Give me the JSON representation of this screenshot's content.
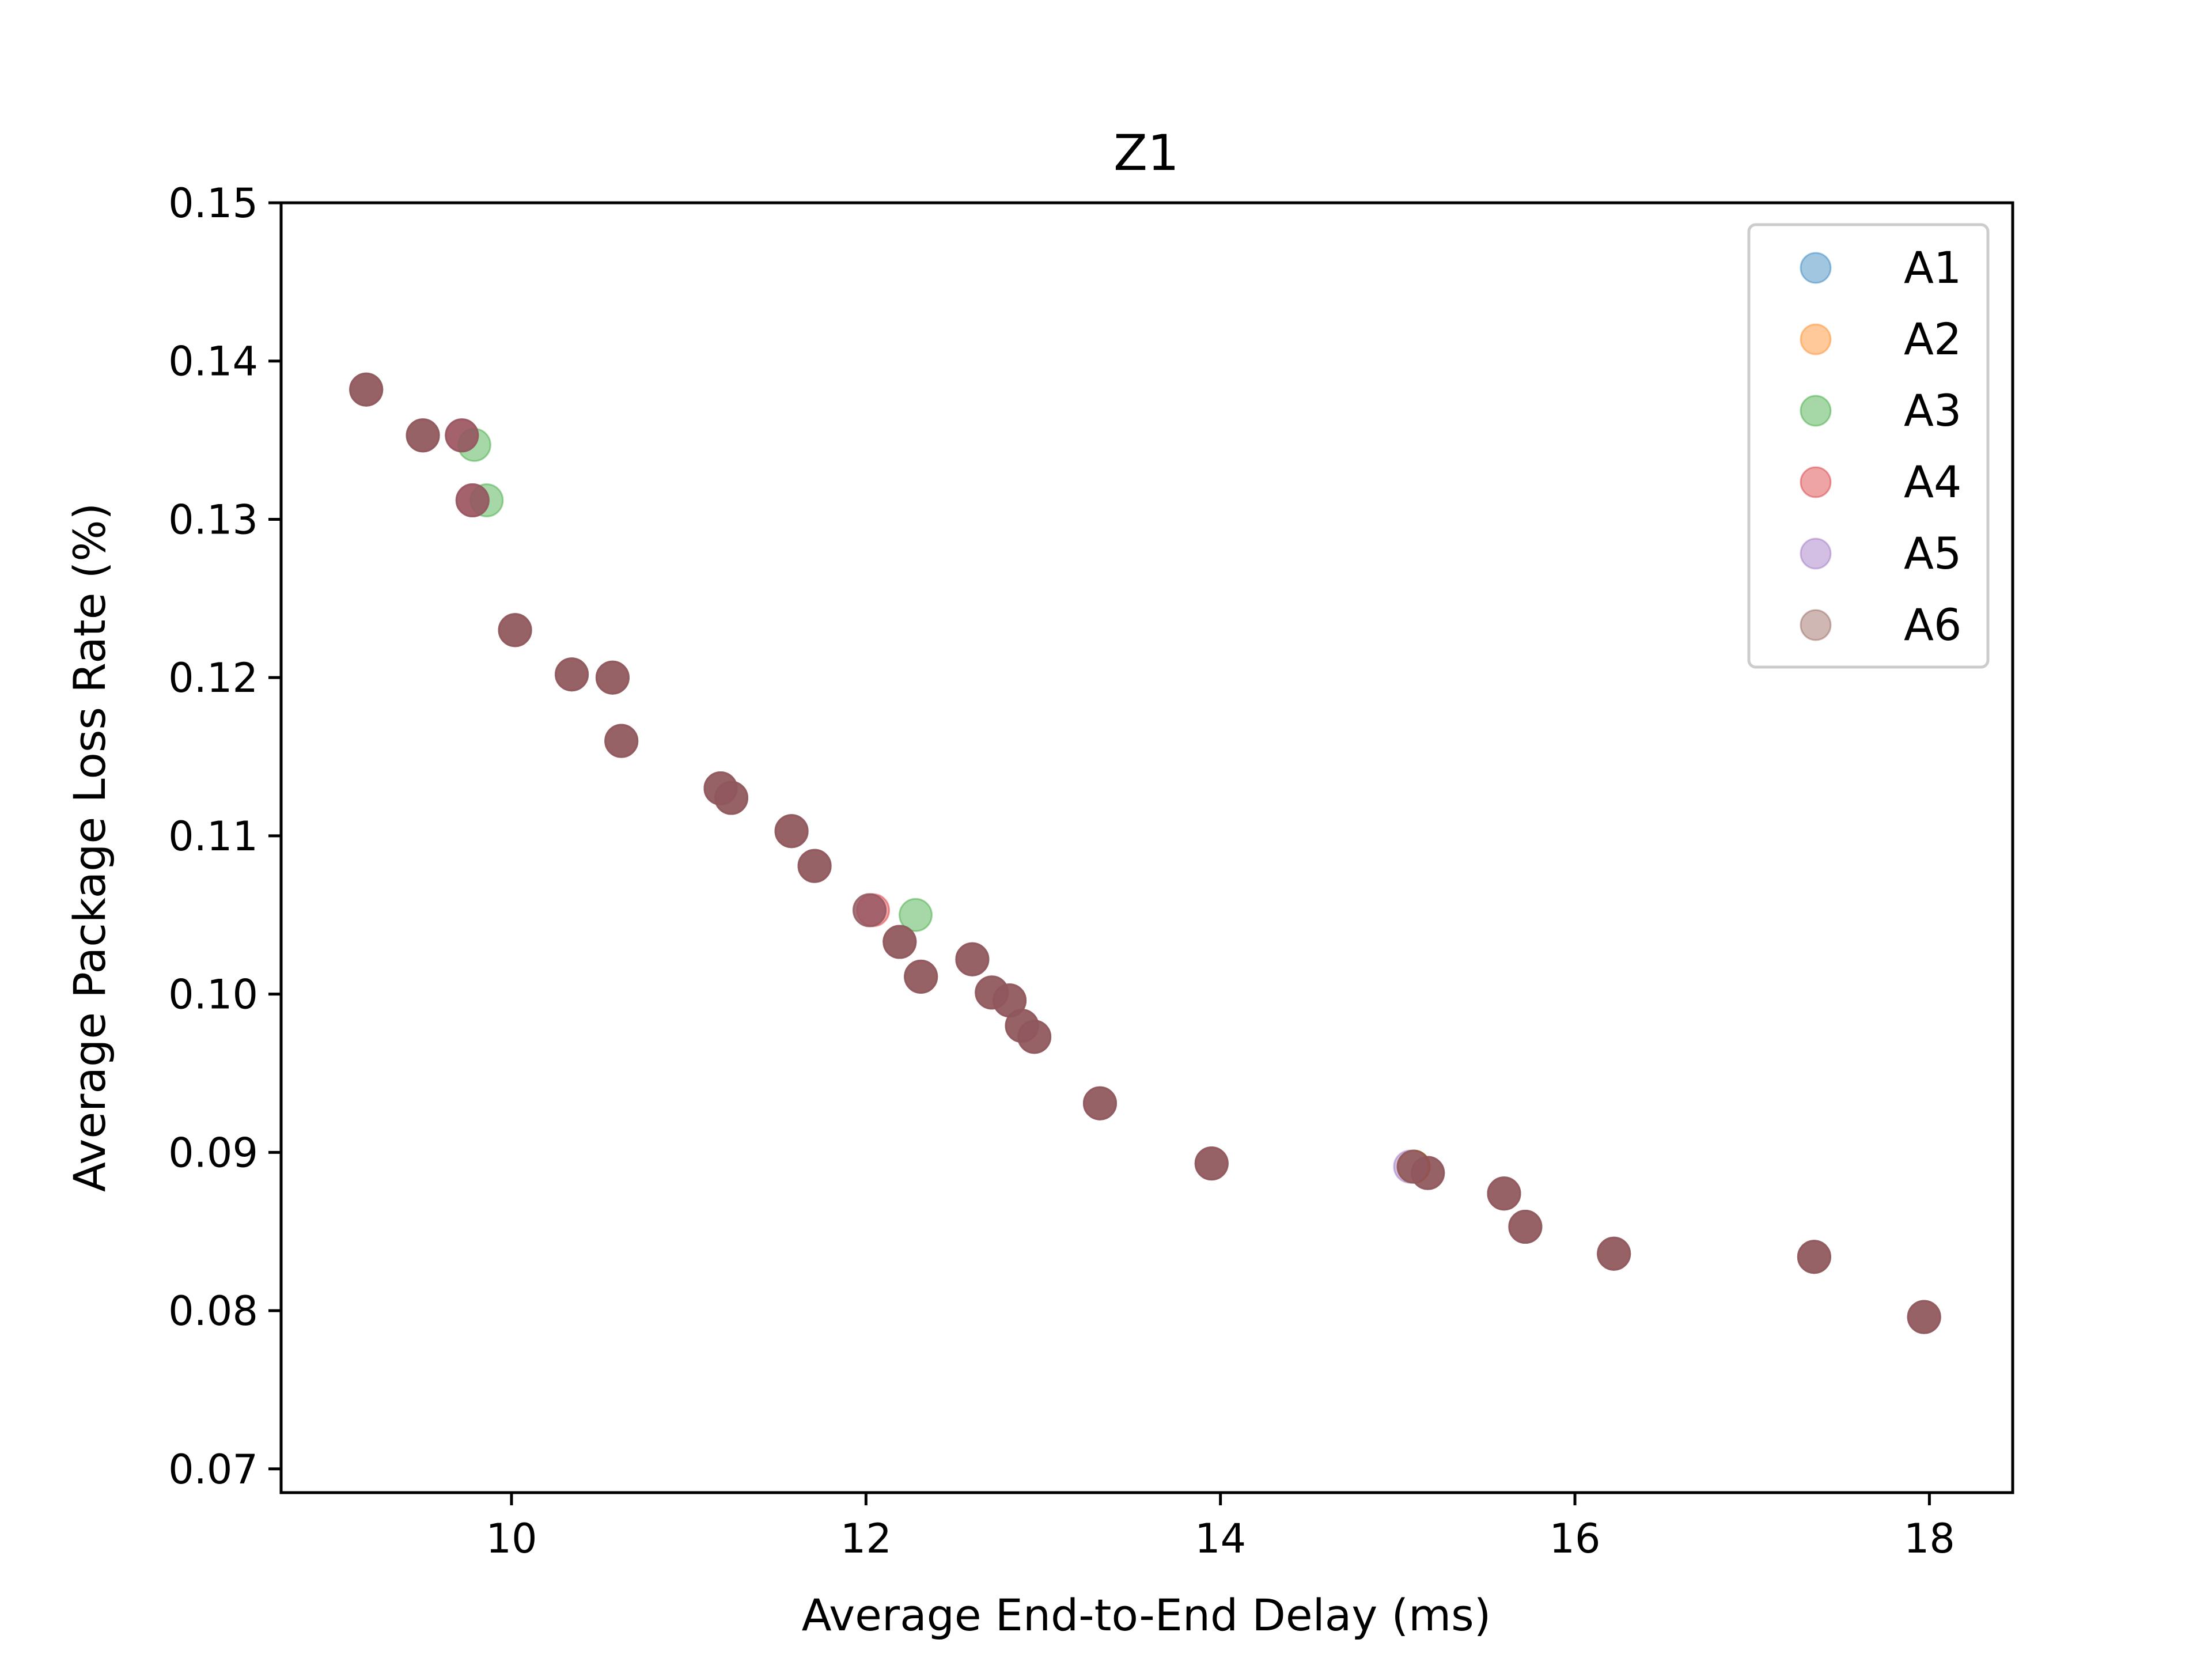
{
  "chart_data": {
    "type": "scatter",
    "title": "Z1",
    "xlabel": "Average End-to-End Delay (ms)",
    "ylabel": "Average Package Loss Rate (%)",
    "xlim": [
      8.7,
      18.47
    ],
    "ylim": [
      0.0685,
      0.15
    ],
    "xticks": [
      "10",
      "12",
      "14",
      "16",
      "18"
    ],
    "xtick_values": [
      10,
      12,
      14,
      16,
      18
    ],
    "yticks": [
      "0.07",
      "0.08",
      "0.09",
      "0.10",
      "0.11",
      "0.12",
      "0.13",
      "0.14",
      "0.15"
    ],
    "ytick_values": [
      0.07,
      0.08,
      0.09,
      0.1,
      0.11,
      0.12,
      0.13,
      0.14,
      0.15
    ],
    "grid": false,
    "legend_position": "top-right",
    "series": [
      {
        "name": "A1",
        "color": "#1f77b4",
        "points": [
          [
            9.18,
            0.1382
          ],
          [
            9.5,
            0.1353
          ],
          [
            9.72,
            0.1353
          ],
          [
            9.78,
            0.1312
          ],
          [
            10.02,
            0.123
          ],
          [
            10.34,
            0.1202
          ],
          [
            10.57,
            0.12
          ],
          [
            10.62,
            0.116
          ],
          [
            11.18,
            0.113
          ],
          [
            11.24,
            0.1124
          ],
          [
            11.58,
            0.1103
          ],
          [
            11.71,
            0.1081
          ],
          [
            12.02,
            0.1053
          ],
          [
            12.19,
            0.1033
          ],
          [
            12.31,
            0.1011
          ],
          [
            12.6,
            0.1022
          ],
          [
            12.71,
            0.1001
          ],
          [
            12.81,
            0.0996
          ],
          [
            12.88,
            0.098
          ],
          [
            12.95,
            0.0973
          ],
          [
            13.32,
            0.0931
          ],
          [
            13.95,
            0.0893
          ],
          [
            15.09,
            0.0891
          ],
          [
            15.17,
            0.0887
          ],
          [
            15.6,
            0.0874
          ],
          [
            15.72,
            0.0853
          ],
          [
            16.22,
            0.0836
          ],
          [
            17.35,
            0.0834
          ],
          [
            17.97,
            0.0796
          ]
        ]
      },
      {
        "name": "A2",
        "color": "#ff7f0e",
        "points": [
          [
            9.18,
            0.1382
          ],
          [
            9.5,
            0.1353
          ],
          [
            9.72,
            0.1353
          ],
          [
            9.78,
            0.1312
          ],
          [
            10.02,
            0.123
          ],
          [
            10.34,
            0.1202
          ],
          [
            10.57,
            0.12
          ],
          [
            10.62,
            0.116
          ],
          [
            11.18,
            0.113
          ],
          [
            11.24,
            0.1124
          ],
          [
            11.58,
            0.1103
          ],
          [
            11.71,
            0.1081
          ],
          [
            12.02,
            0.1053
          ],
          [
            12.19,
            0.1033
          ],
          [
            12.31,
            0.1011
          ],
          [
            12.6,
            0.1022
          ],
          [
            12.71,
            0.1001
          ],
          [
            12.81,
            0.0996
          ],
          [
            12.88,
            0.098
          ],
          [
            12.95,
            0.0973
          ],
          [
            13.32,
            0.0931
          ],
          [
            13.95,
            0.0893
          ],
          [
            15.09,
            0.0891
          ],
          [
            15.17,
            0.0887
          ],
          [
            15.6,
            0.0874
          ],
          [
            15.72,
            0.0853
          ],
          [
            16.22,
            0.0836
          ],
          [
            17.35,
            0.0834
          ],
          [
            17.97,
            0.0796
          ]
        ]
      },
      {
        "name": "A3",
        "color": "#2ca02c",
        "points": [
          [
            9.18,
            0.1382
          ],
          [
            9.5,
            0.1353
          ],
          [
            9.79,
            0.1347
          ],
          [
            9.86,
            0.1312
          ],
          [
            10.02,
            0.123
          ],
          [
            10.34,
            0.1202
          ],
          [
            10.57,
            0.12
          ],
          [
            10.62,
            0.116
          ],
          [
            11.18,
            0.113
          ],
          [
            11.24,
            0.1124
          ],
          [
            11.58,
            0.1103
          ],
          [
            11.71,
            0.1081
          ],
          [
            12.28,
            0.105
          ],
          [
            12.19,
            0.1033
          ],
          [
            12.31,
            0.1011
          ],
          [
            12.6,
            0.1022
          ],
          [
            12.71,
            0.1001
          ],
          [
            12.81,
            0.0996
          ],
          [
            12.88,
            0.098
          ],
          [
            12.95,
            0.0973
          ],
          [
            13.32,
            0.0931
          ],
          [
            13.95,
            0.0893
          ],
          [
            15.09,
            0.0891
          ],
          [
            15.17,
            0.0887
          ],
          [
            15.6,
            0.0874
          ],
          [
            15.72,
            0.0853
          ],
          [
            16.22,
            0.0836
          ],
          [
            17.35,
            0.0834
          ],
          [
            17.97,
            0.0796
          ]
        ]
      },
      {
        "name": "A4",
        "color": "#d62728",
        "points": [
          [
            9.18,
            0.1382
          ],
          [
            9.5,
            0.1353
          ],
          [
            9.72,
            0.1353
          ],
          [
            9.78,
            0.1312
          ],
          [
            10.02,
            0.123
          ],
          [
            10.34,
            0.1202
          ],
          [
            10.57,
            0.12
          ],
          [
            10.62,
            0.116
          ],
          [
            11.18,
            0.113
          ],
          [
            11.24,
            0.1124
          ],
          [
            11.58,
            0.1103
          ],
          [
            11.71,
            0.1081
          ],
          [
            12.04,
            0.1053
          ],
          [
            12.19,
            0.1033
          ],
          [
            12.31,
            0.1011
          ],
          [
            12.6,
            0.1022
          ],
          [
            12.71,
            0.1001
          ],
          [
            12.81,
            0.0996
          ],
          [
            12.88,
            0.098
          ],
          [
            12.95,
            0.0973
          ],
          [
            13.32,
            0.0931
          ],
          [
            13.95,
            0.0893
          ],
          [
            15.09,
            0.0891
          ],
          [
            15.17,
            0.0887
          ],
          [
            15.6,
            0.0874
          ],
          [
            15.72,
            0.0853
          ],
          [
            16.22,
            0.0836
          ],
          [
            17.35,
            0.0834
          ],
          [
            17.97,
            0.0796
          ]
        ]
      },
      {
        "name": "A5",
        "color": "#9467bd",
        "points": [
          [
            9.18,
            0.1382
          ],
          [
            9.5,
            0.1353
          ],
          [
            9.72,
            0.1353
          ],
          [
            9.78,
            0.1312
          ],
          [
            10.02,
            0.123
          ],
          [
            10.34,
            0.1202
          ],
          [
            10.57,
            0.12
          ],
          [
            10.62,
            0.116
          ],
          [
            11.18,
            0.113
          ],
          [
            11.24,
            0.1124
          ],
          [
            11.58,
            0.1103
          ],
          [
            11.71,
            0.1081
          ],
          [
            12.02,
            0.1053
          ],
          [
            12.19,
            0.1033
          ],
          [
            12.31,
            0.1011
          ],
          [
            12.6,
            0.1022
          ],
          [
            12.71,
            0.1001
          ],
          [
            12.81,
            0.0996
          ],
          [
            12.88,
            0.098
          ],
          [
            12.95,
            0.0973
          ],
          [
            13.32,
            0.0931
          ],
          [
            13.95,
            0.0893
          ],
          [
            15.07,
            0.0891
          ],
          [
            15.17,
            0.0887
          ],
          [
            15.6,
            0.0874
          ],
          [
            15.72,
            0.0853
          ],
          [
            16.22,
            0.0836
          ],
          [
            17.35,
            0.0834
          ],
          [
            17.97,
            0.0796
          ]
        ]
      },
      {
        "name": "A6",
        "color": "#8c564b",
        "points": [
          [
            9.18,
            0.1382
          ],
          [
            9.5,
            0.1353
          ],
          [
            9.72,
            0.1353
          ],
          [
            9.78,
            0.1312
          ],
          [
            10.02,
            0.123
          ],
          [
            10.34,
            0.1202
          ],
          [
            10.57,
            0.12
          ],
          [
            10.62,
            0.116
          ],
          [
            11.18,
            0.113
          ],
          [
            11.24,
            0.1124
          ],
          [
            11.58,
            0.1103
          ],
          [
            11.71,
            0.1081
          ],
          [
            12.02,
            0.1053
          ],
          [
            12.19,
            0.1033
          ],
          [
            12.31,
            0.1011
          ],
          [
            12.6,
            0.1022
          ],
          [
            12.71,
            0.1001
          ],
          [
            12.81,
            0.0996
          ],
          [
            12.88,
            0.098
          ],
          [
            12.95,
            0.0973
          ],
          [
            13.32,
            0.0931
          ],
          [
            13.95,
            0.0893
          ],
          [
            15.09,
            0.0891
          ],
          [
            15.17,
            0.0887
          ],
          [
            15.6,
            0.0874
          ],
          [
            15.72,
            0.0853
          ],
          [
            16.22,
            0.0836
          ],
          [
            17.35,
            0.0834
          ],
          [
            17.97,
            0.0796
          ]
        ]
      }
    ]
  }
}
